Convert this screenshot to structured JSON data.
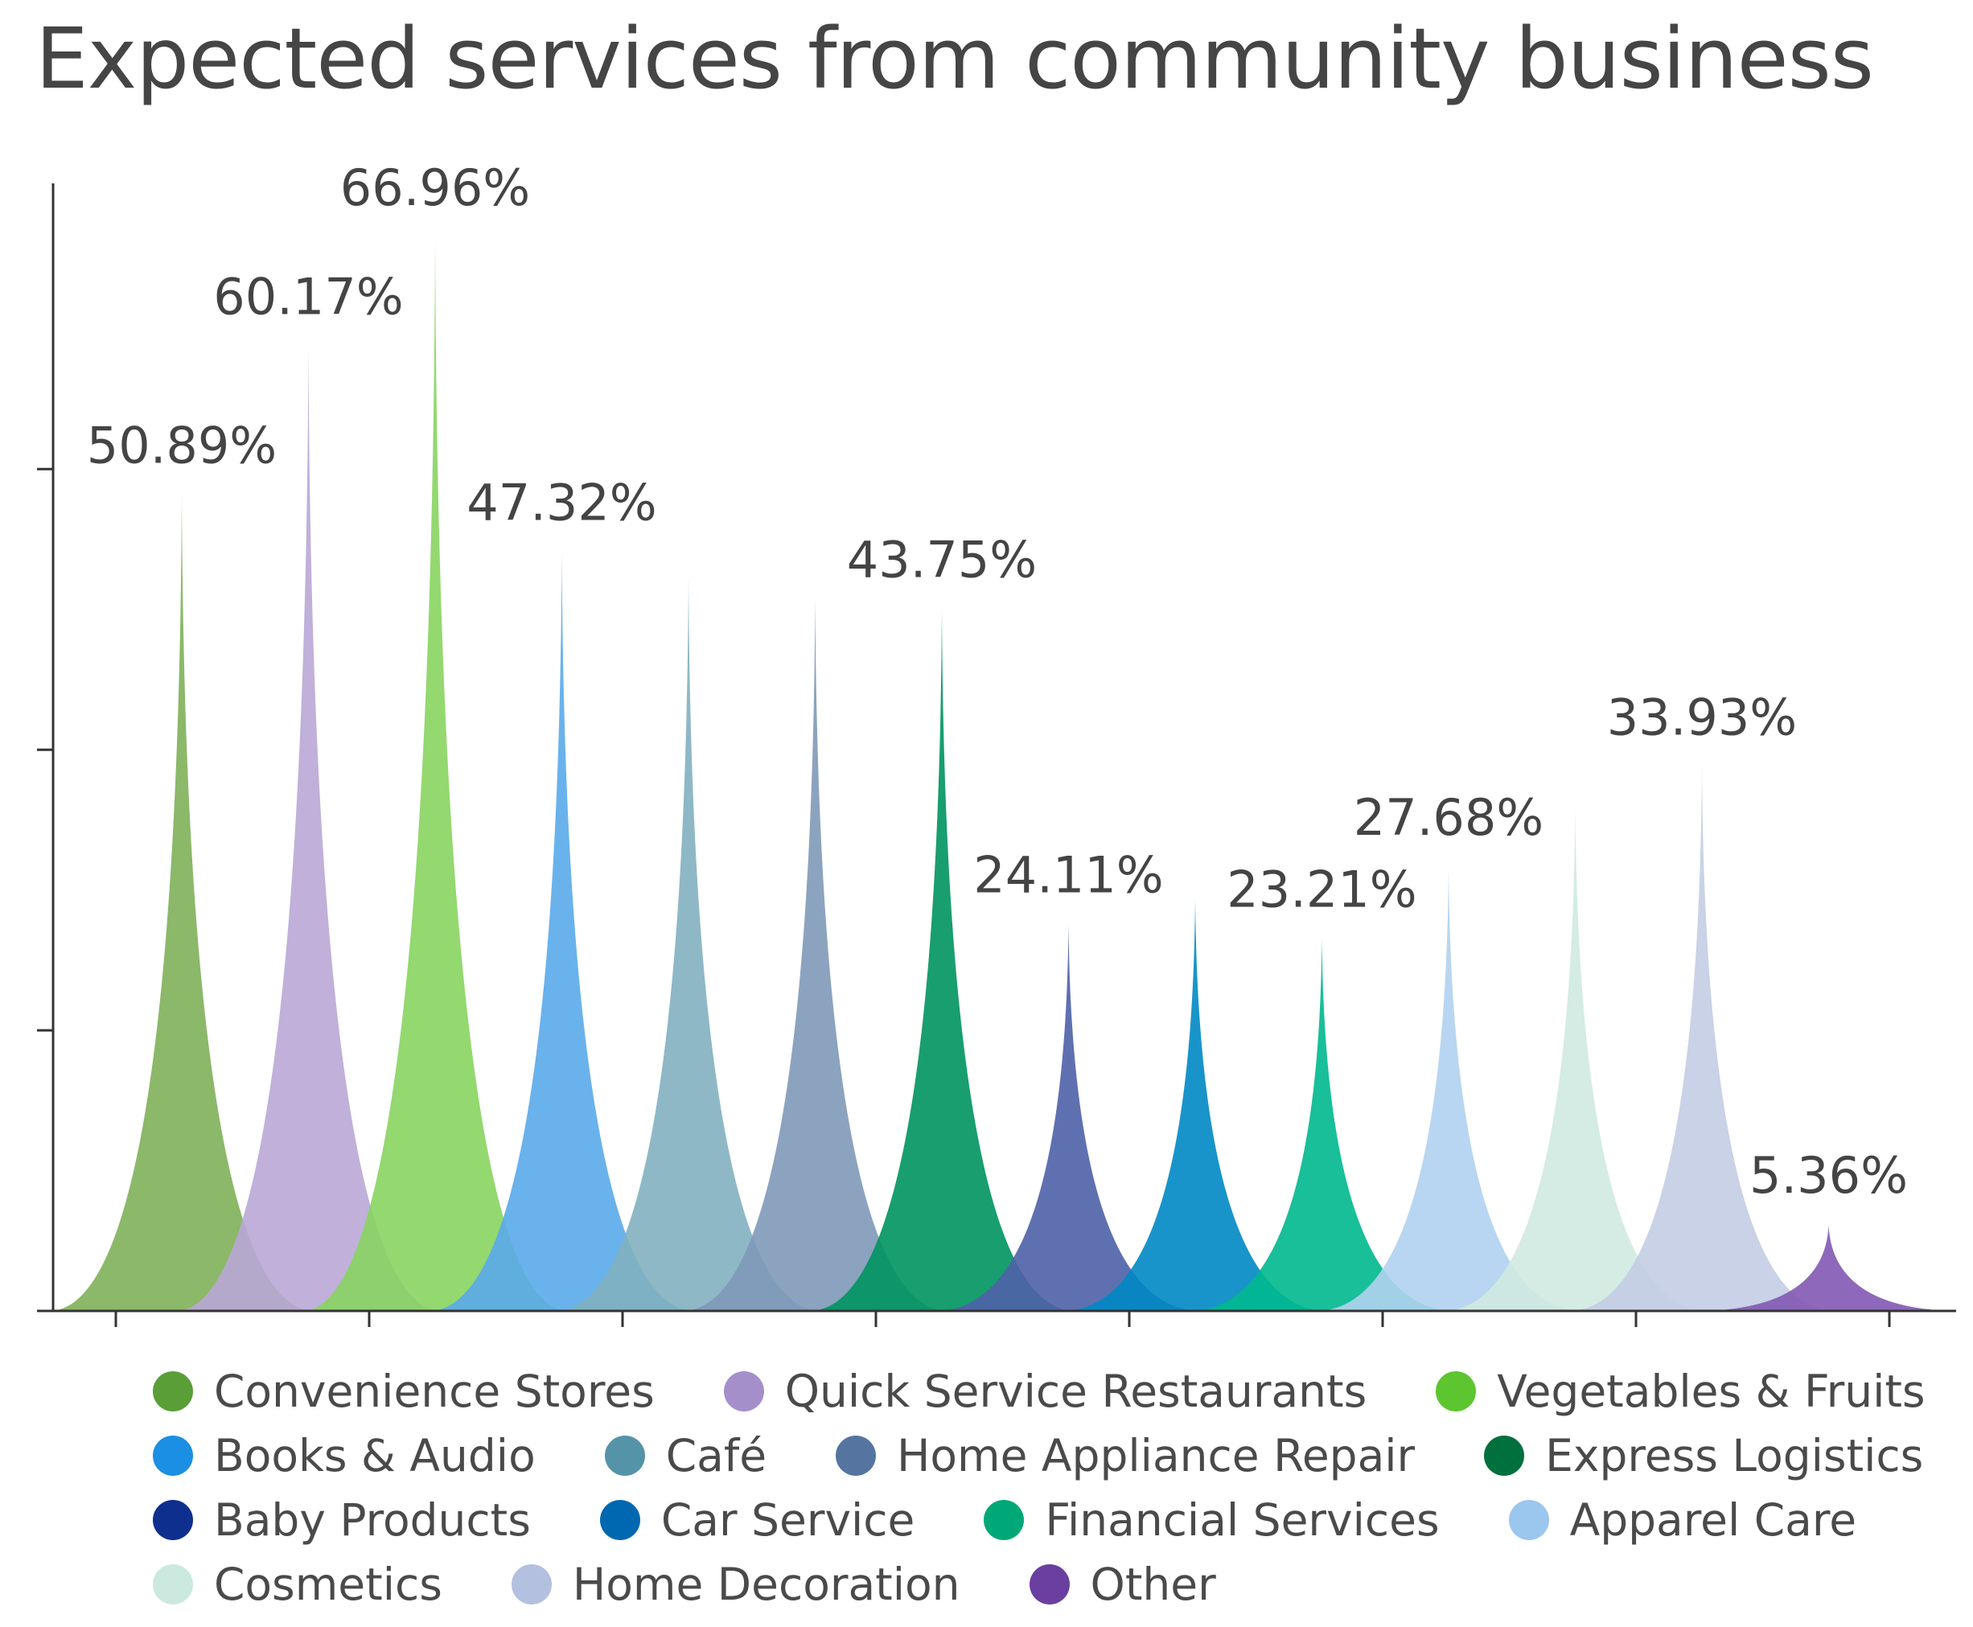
{
  "chart_data": {
    "type": "area",
    "title": "Expected services from community business",
    "xlabel": "",
    "ylabel": "",
    "ylim": [
      0,
      70
    ],
    "yticks": [
      0,
      17.5,
      35,
      52.5,
      70
    ],
    "unit": "%",
    "legend_position": "bottom",
    "series": [
      {
        "name": "Convenience Stores",
        "value": 50.89,
        "label": "50.89%",
        "color": "#7fb05a",
        "legend_color": "#5a9e38"
      },
      {
        "name": "Quick Service Restaurants",
        "value": 60.17,
        "label": "60.17%",
        "color": "#b9a7d6",
        "legend_color": "#a58fcb"
      },
      {
        "name": "Vegetables & Fruits",
        "value": 66.96,
        "label": "66.96%",
        "color": "#88d460",
        "legend_color": "#5dc52f"
      },
      {
        "name": "Books & Audio",
        "value": 47.32,
        "label": "47.32%",
        "color": "#5aaaea",
        "legend_color": "#1a8fe3"
      },
      {
        "name": "Café",
        "value": 45.8,
        "label": "",
        "color": "#82b0c0",
        "legend_color": "#5593a8"
      },
      {
        "name": "Home Appliance Repair",
        "value": 44.5,
        "label": "",
        "color": "#8099b8",
        "legend_color": "#5575a0"
      },
      {
        "name": "Express Logistics",
        "value": 43.75,
        "label": "43.75%",
        "color": "#00935f",
        "legend_color": "#00703f"
      },
      {
        "name": "Baby Products",
        "value": 24.11,
        "label": "24.11%",
        "color": "#4e61a8",
        "legend_color": "#0f2f8f"
      },
      {
        "name": "Car Service",
        "value": 25.7,
        "label": "",
        "color": "#0088c4",
        "legend_color": "#0068b0"
      },
      {
        "name": "Financial Services",
        "value": 23.21,
        "label": "23.21%",
        "color": "#00b88e",
        "legend_color": "#00a878"
      },
      {
        "name": "Apparel Care",
        "value": 27.68,
        "label": "27.68%",
        "color": "#b0d2ef",
        "legend_color": "#9bc7ee"
      },
      {
        "name": "Cosmetics",
        "value": 31.6,
        "label": "",
        "color": "#cfeae0",
        "legend_color": "#cbe9de"
      },
      {
        "name": "Home Decoration",
        "value": 33.93,
        "label": "33.93%",
        "color": "#c3cde3",
        "legend_color": "#b3c0df"
      },
      {
        "name": "Other",
        "value": 5.36,
        "label": "5.36%",
        "color": "#8258b2",
        "legend_color": "#6a3fa0"
      }
    ]
  },
  "legend": {
    "rows": [
      [
        "Convenience Stores",
        "Quick Service Restaurants",
        "Vegetables & Fruits"
      ],
      [
        "Books & Audio",
        "Café",
        "Home Appliance Repair",
        "Express Logistics"
      ],
      [
        "Baby Products",
        "Car Service",
        "Financial Services",
        "Apparel Care"
      ],
      [
        "Cosmetics",
        "Home Decoration",
        "Other"
      ]
    ]
  }
}
